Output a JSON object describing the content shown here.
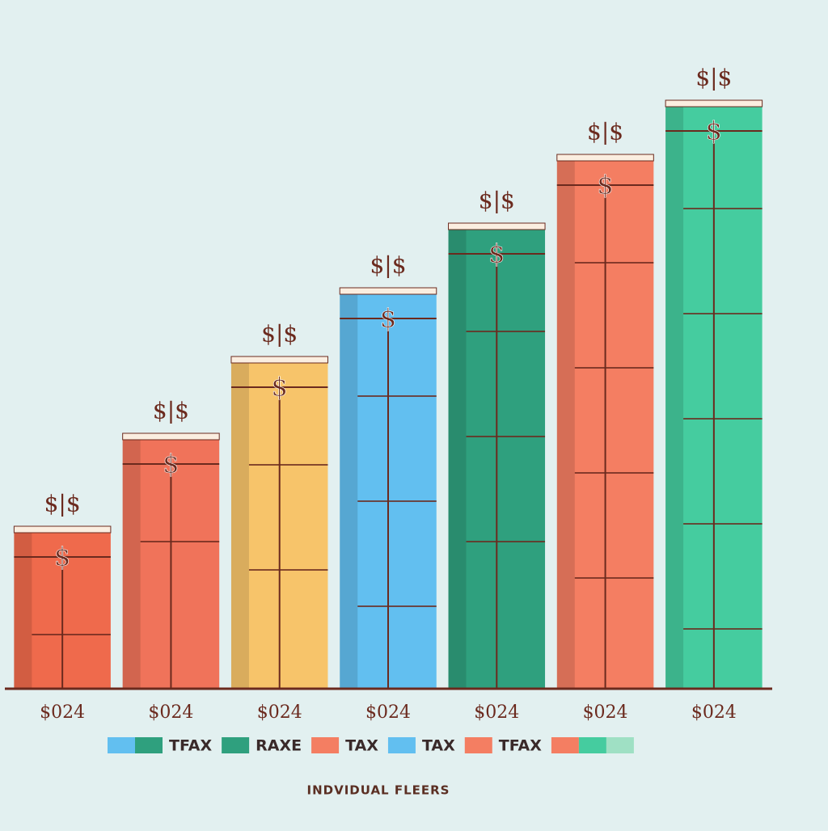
{
  "chart_data": {
    "type": "bar",
    "categories": [
      "$024",
      "$024",
      "$024",
      "$024",
      "$024",
      "$024",
      "$024"
    ],
    "values": [
      197,
      312,
      407,
      492,
      572,
      657,
      724
    ],
    "colors": [
      "#ef6a4c",
      "#f0735a",
      "#f7c46a",
      "#62bff0",
      "#2fa07e",
      "#f47e62",
      "#45cc9f"
    ],
    "bar_top_label": "$|$",
    "bar_inner_label": "$",
    "x_label": "INDVIDUAL FLEERS",
    "legend": [
      {
        "colors": [
          "#62bff0",
          "#2fa07e"
        ],
        "label": "TFAX"
      },
      {
        "colors": [
          "#2fa07e"
        ],
        "label": "RAXE"
      },
      {
        "colors": [
          "#f47e62"
        ],
        "label": "TAX"
      },
      {
        "colors": [
          "#62bff0"
        ],
        "label": "TAX"
      },
      {
        "colors": [
          "#f47e62"
        ],
        "label": "TFAX"
      },
      {
        "colors": [
          "#f47e62",
          "#45cc9f",
          "#9fe0c4"
        ]
      }
    ]
  }
}
